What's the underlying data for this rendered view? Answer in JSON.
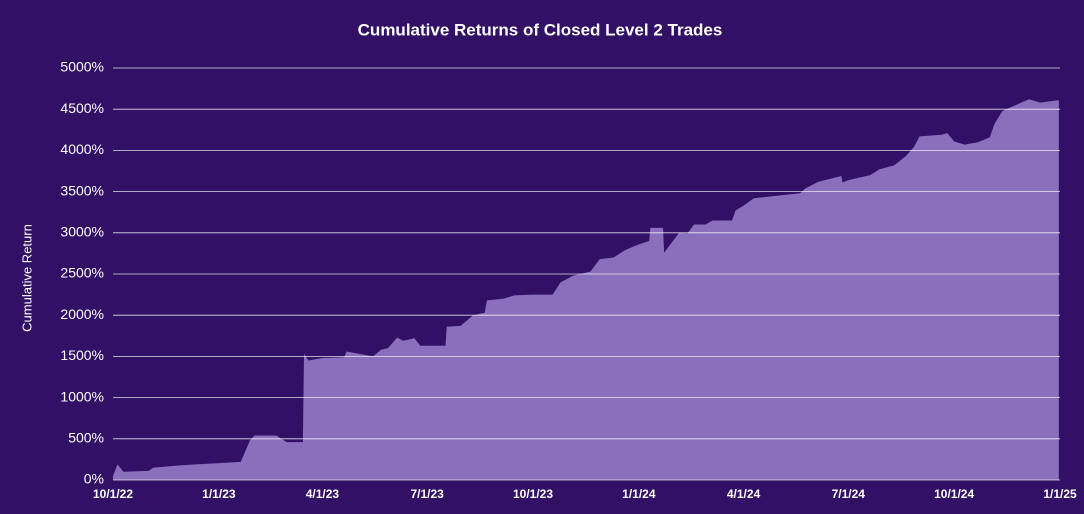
{
  "chart_data": {
    "type": "area",
    "title": "Cumulative Returns of Closed Level 2 Trades",
    "y_label": "Cumulative Return",
    "color": "#8a6fbd",
    "background": "#311066",
    "grid": true,
    "x": [
      "2022-10-01",
      "2022-10-05",
      "2022-10-10",
      "2022-11-01",
      "2022-11-05",
      "2022-12-01",
      "2023-01-20",
      "2023-01-28",
      "2023-02-01",
      "2023-02-20",
      "2023-03-01",
      "2023-03-15",
      "2023-03-16",
      "2023-03-20",
      "2023-04-01",
      "2023-04-20",
      "2023-04-22",
      "2023-05-15",
      "2023-05-22",
      "2023-05-28",
      "2023-06-05",
      "2023-06-10",
      "2023-06-20",
      "2023-06-25",
      "2023-07-17",
      "2023-07-18",
      "2023-07-30",
      "2023-08-10",
      "2023-08-20",
      "2023-08-22",
      "2023-09-05",
      "2023-09-15",
      "2023-10-01",
      "2023-10-18",
      "2023-10-25",
      "2023-11-05",
      "2023-11-20",
      "2023-11-28",
      "2023-12-10",
      "2023-12-20",
      "2024-01-01",
      "2024-01-10",
      "2024-01-11",
      "2024-01-22",
      "2024-01-23",
      "2024-02-05",
      "2024-02-12",
      "2024-02-18",
      "2024-02-28",
      "2024-03-05",
      "2024-03-22",
      "2024-03-25",
      "2024-04-01",
      "2024-04-10",
      "2024-05-20",
      "2024-05-25",
      "2024-06-05",
      "2024-06-25",
      "2024-06-26",
      "2024-07-01",
      "2024-07-20",
      "2024-07-28",
      "2024-08-10",
      "2024-08-20",
      "2024-08-27",
      "2024-09-01",
      "2024-09-20",
      "2024-09-25",
      "2024-10-01",
      "2024-10-10",
      "2024-10-22",
      "2024-11-01",
      "2024-11-05",
      "2024-11-12",
      "2024-11-25",
      "2024-12-05",
      "2024-12-15",
      "2024-12-31"
    ],
    "values": [
      50,
      190,
      100,
      110,
      150,
      180,
      220,
      480,
      540,
      540,
      460,
      460,
      1530,
      1450,
      1480,
      1490,
      1560,
      1500,
      1580,
      1600,
      1730,
      1690,
      1720,
      1630,
      1630,
      1860,
      1870,
      2000,
      2030,
      2180,
      2200,
      2240,
      2250,
      2250,
      2400,
      2480,
      2530,
      2680,
      2700,
      2790,
      2860,
      2900,
      3060,
      3060,
      2760,
      3000,
      2990,
      3100,
      3100,
      3150,
      3150,
      3270,
      3330,
      3420,
      3480,
      3540,
      3620,
      3690,
      3610,
      3640,
      3700,
      3770,
      3820,
      3930,
      4040,
      4170,
      4190,
      4210,
      4110,
      4070,
      4100,
      4160,
      4320,
      4480,
      4560,
      4620,
      4580,
      4610
    ],
    "xlim": [
      "2022-10-01",
      "2025-01-01"
    ],
    "xticks": [
      {
        "value": "2022-10-01",
        "label": "10/1/22"
      },
      {
        "value": "2023-01-01",
        "label": "1/1/23"
      },
      {
        "value": "2023-04-01",
        "label": "4/1/23"
      },
      {
        "value": "2023-07-01",
        "label": "7/1/23"
      },
      {
        "value": "2023-10-01",
        "label": "10/1/23"
      },
      {
        "value": "2024-01-01",
        "label": "1/1/24"
      },
      {
        "value": "2024-04-01",
        "label": "4/1/24"
      },
      {
        "value": "2024-07-01",
        "label": "7/1/24"
      },
      {
        "value": "2024-10-01",
        "label": "10/1/24"
      },
      {
        "value": "2025-01-01",
        "label": "1/1/25"
      }
    ],
    "ylim": [
      0,
      5000
    ],
    "yticks": [
      {
        "value": 0,
        "label": "0%"
      },
      {
        "value": 500,
        "label": "500%"
      },
      {
        "value": 1000,
        "label": "1000%"
      },
      {
        "value": 1500,
        "label": "1500%"
      },
      {
        "value": 2000,
        "label": "2000%"
      },
      {
        "value": 2500,
        "label": "2500%"
      },
      {
        "value": 3000,
        "label": "3000%"
      },
      {
        "value": 3500,
        "label": "3500%"
      },
      {
        "value": 4000,
        "label": "4000%"
      },
      {
        "value": 4500,
        "label": "4500%"
      },
      {
        "value": 5000,
        "label": "5000%"
      }
    ]
  }
}
